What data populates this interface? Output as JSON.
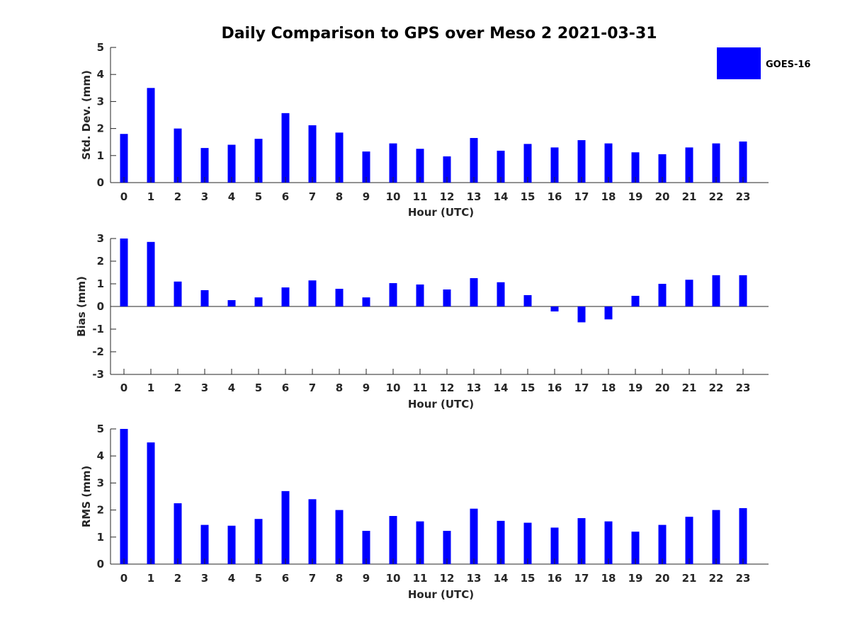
{
  "figure_title": "Daily Comparison to GPS over Meso 2 2021-03-31",
  "legend": {
    "label": "GOES-16",
    "color": "#0000ff",
    "placement": "top-right"
  },
  "chart_data": [
    {
      "type": "bar",
      "id": "std",
      "ylabel": "Std. Dev. (mm)",
      "xlabel": "Hour (UTC)",
      "ylim": [
        0,
        5
      ],
      "yticks": [
        0,
        1,
        2,
        3,
        4,
        5
      ],
      "categories": [
        "0",
        "1",
        "2",
        "3",
        "4",
        "5",
        "6",
        "7",
        "8",
        "9",
        "10",
        "11",
        "12",
        "13",
        "14",
        "15",
        "16",
        "17",
        "18",
        "19",
        "20",
        "21",
        "22",
        "23"
      ],
      "series": [
        {
          "name": "GOES-16",
          "color": "#0000ff",
          "values": [
            1.8,
            3.5,
            2.0,
            1.28,
            1.4,
            1.62,
            2.57,
            2.12,
            1.85,
            1.15,
            1.45,
            1.25,
            0.97,
            1.65,
            1.18,
            1.43,
            1.3,
            1.57,
            1.45,
            1.12,
            1.05,
            1.3,
            1.45,
            1.52
          ]
        }
      ]
    },
    {
      "type": "bar",
      "id": "bias",
      "ylabel": "Bias (mm)",
      "xlabel": "Hour (UTC)",
      "ylim": [
        -3,
        3
      ],
      "yticks": [
        -3,
        -2,
        -1,
        0,
        1,
        2,
        3
      ],
      "zero_line": true,
      "categories": [
        "0",
        "1",
        "2",
        "3",
        "4",
        "5",
        "6",
        "7",
        "8",
        "9",
        "10",
        "11",
        "12",
        "13",
        "14",
        "15",
        "16",
        "17",
        "18",
        "19",
        "20",
        "21",
        "22",
        "23"
      ],
      "series": [
        {
          "name": "GOES-16",
          "color": "#0000ff",
          "values": [
            3.0,
            2.85,
            1.1,
            0.72,
            0.28,
            0.4,
            0.84,
            1.15,
            0.78,
            0.4,
            1.03,
            0.97,
            0.75,
            1.25,
            1.07,
            0.5,
            -0.22,
            -0.7,
            -0.57,
            0.47,
            1.0,
            1.18,
            1.38,
            1.38
          ]
        }
      ]
    },
    {
      "type": "bar",
      "id": "rms",
      "ylabel": "RMS (mm)",
      "xlabel": "Hour (UTC)",
      "ylim": [
        0,
        5
      ],
      "yticks": [
        0,
        1,
        2,
        3,
        4,
        5
      ],
      "categories": [
        "0",
        "1",
        "2",
        "3",
        "4",
        "5",
        "6",
        "7",
        "8",
        "9",
        "10",
        "11",
        "12",
        "13",
        "14",
        "15",
        "16",
        "17",
        "18",
        "19",
        "20",
        "21",
        "22",
        "23"
      ],
      "series": [
        {
          "name": "GOES-16",
          "color": "#0000ff",
          "values": [
            5.0,
            4.5,
            2.25,
            1.45,
            1.42,
            1.67,
            2.7,
            2.4,
            2.0,
            1.23,
            1.78,
            1.58,
            1.23,
            2.05,
            1.6,
            1.53,
            1.35,
            1.7,
            1.58,
            1.2,
            1.45,
            1.75,
            2.0,
            2.07
          ]
        }
      ]
    }
  ]
}
